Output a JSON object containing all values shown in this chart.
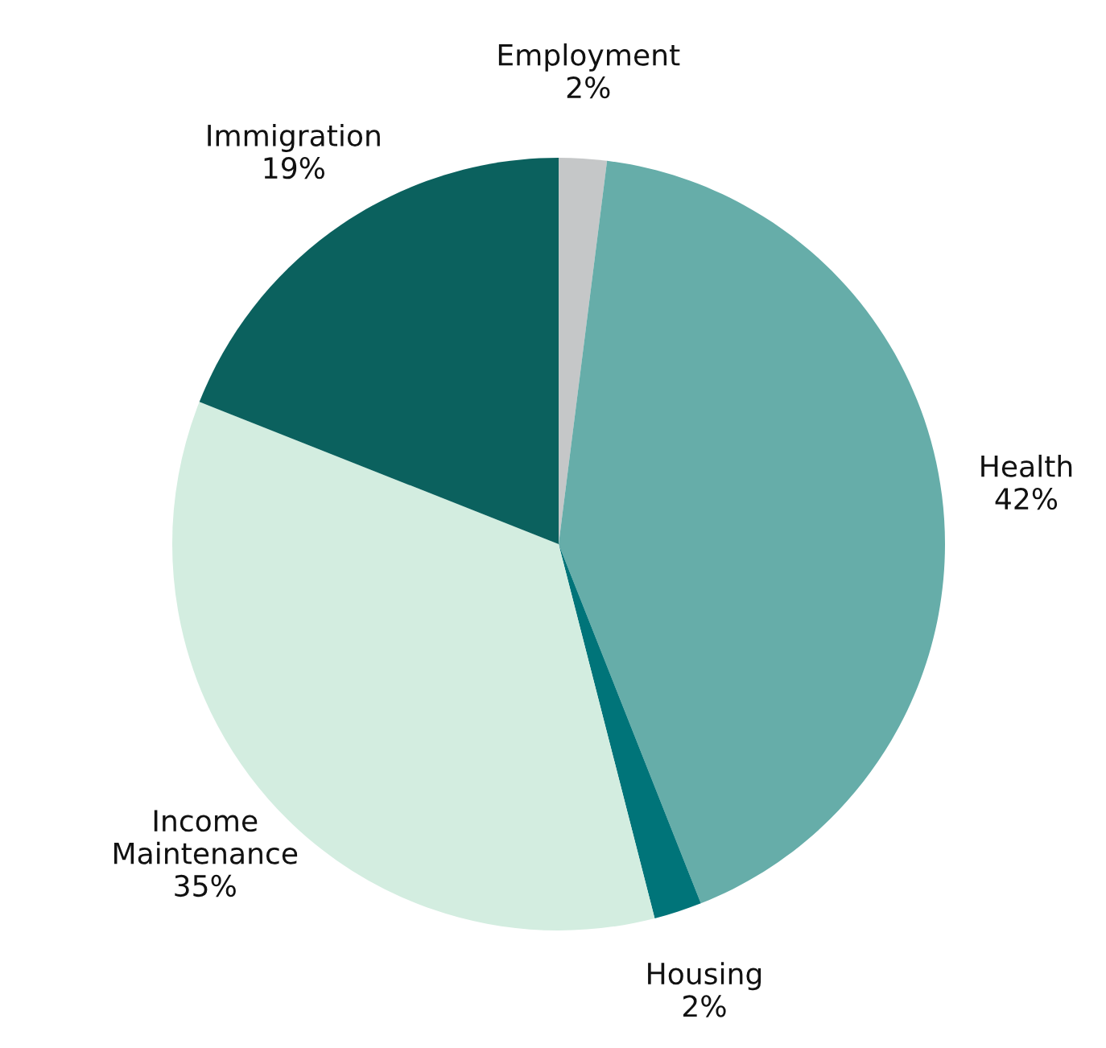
{
  "chart_data": {
    "type": "pie",
    "categories": [
      "Employment",
      "Health",
      "Housing",
      "Income\nMaintenance",
      "Immigration"
    ],
    "values": [
      2,
      42,
      2,
      35,
      19
    ],
    "value_labels": [
      "2%",
      "42%",
      "2%",
      "35%",
      "19%"
    ],
    "colors": [
      "#c5c7c8",
      "#66ada9",
      "#007479",
      "#d3ede0",
      "#0b615e"
    ],
    "legend": false
  }
}
